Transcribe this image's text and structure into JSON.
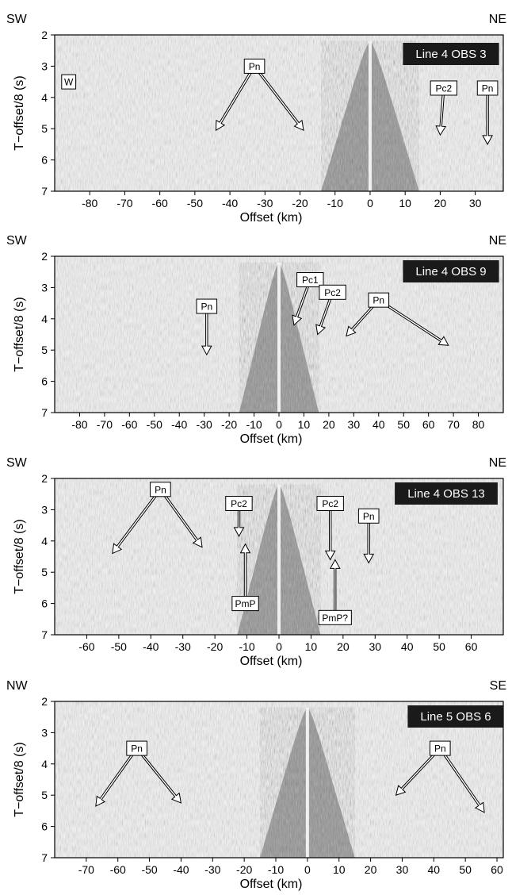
{
  "figure": {
    "xlabel": "Offset (km)",
    "ylabel": "T−offset/8 (s)",
    "colors": {
      "ink": "#000000",
      "panel_bg": "#f4f4f4",
      "label_box": "#1a1a1a",
      "label_text": "#ffffff",
      "annotation_box": "#ffffff"
    }
  },
  "chart_data": [
    {
      "type": "seismic_record_section",
      "title": "Line 4 OBS 3",
      "left_direction": "SW",
      "right_direction": "NE",
      "xlabel": "Offset (km)",
      "ylabel": "T−offset/8 (s)",
      "xlim": [
        -90,
        38
      ],
      "ylim": [
        7,
        2
      ],
      "x_ticks": [
        -80,
        -70,
        -60,
        -50,
        -40,
        -30,
        -20,
        -10,
        0,
        10,
        20,
        30
      ],
      "y_ticks": [
        2,
        3,
        4,
        5,
        6,
        7
      ],
      "source_apex_x": 0,
      "apex_half_width_km": 14,
      "annotations": [
        {
          "label": "W",
          "box": [
            -86,
            3.5
          ],
          "arrows": []
        },
        {
          "label": "Pn",
          "box": [
            -33,
            3.0
          ],
          "arrows": [
            [
              -44,
              5.05
            ],
            [
              -19,
              5.05
            ]
          ]
        },
        {
          "label": "Pc2",
          "box": [
            21,
            3.7
          ],
          "arrows": [
            [
              20,
              5.2
            ]
          ]
        },
        {
          "label": "Pn",
          "box": [
            33.5,
            3.7
          ],
          "arrows": [
            [
              33.5,
              5.5
            ]
          ]
        }
      ]
    },
    {
      "type": "seismic_record_section",
      "title": "Line 4 OBS 9",
      "left_direction": "SW",
      "right_direction": "NE",
      "xlabel": "Offset (km)",
      "ylabel": "T−offset/8 (s)",
      "xlim": [
        -90,
        90
      ],
      "ylim": [
        7,
        2
      ],
      "x_ticks": [
        -80,
        -70,
        -60,
        -50,
        -40,
        -30,
        -20,
        -10,
        0,
        10,
        20,
        30,
        40,
        50,
        60,
        70,
        80
      ],
      "y_ticks": [
        2,
        3,
        4,
        5,
        6,
        7
      ],
      "source_apex_x": 0,
      "apex_half_width_km": 16,
      "annotations": [
        {
          "label": "Pn",
          "box": [
            -29,
            3.6
          ],
          "arrows": [
            [
              -29,
              5.15
            ]
          ]
        },
        {
          "label": "Pc1",
          "box": [
            12.5,
            2.75
          ],
          "arrows": [
            [
              6,
              4.2
            ]
          ]
        },
        {
          "label": "Pc2",
          "box": [
            21.5,
            3.15
          ],
          "arrows": [
            [
              15.5,
              4.5
            ]
          ]
        },
        {
          "label": "Pn",
          "box": [
            40,
            3.4
          ],
          "arrows": [
            [
              27,
              4.55
            ],
            [
              68,
              4.85
            ]
          ]
        }
      ]
    },
    {
      "type": "seismic_record_section",
      "title": "Line 4 OBS 13",
      "left_direction": "SW",
      "right_direction": "NE",
      "xlabel": "Offset (km)",
      "ylabel": "T−offset/8 (s)",
      "xlim": [
        -70,
        70
      ],
      "ylim": [
        7,
        2
      ],
      "x_ticks": [
        -60,
        -50,
        -40,
        -30,
        -20,
        -10,
        0,
        10,
        20,
        30,
        40,
        50,
        60
      ],
      "y_ticks": [
        2,
        3,
        4,
        5,
        6,
        7
      ],
      "source_apex_x": 0,
      "apex_half_width_km": 13,
      "annotations": [
        {
          "label": "Pn",
          "box": [
            -37,
            2.35
          ],
          "arrows": [
            [
              -52,
              4.4
            ],
            [
              -24,
              4.2
            ]
          ]
        },
        {
          "label": "Pc2",
          "box": [
            -12.5,
            2.8
          ],
          "arrows": [
            [
              -12.5,
              3.85
            ]
          ]
        },
        {
          "label": "PmP",
          "box": [
            -10.5,
            6.0
          ],
          "arrows": [
            [
              -10.5,
              4.1
            ]
          ]
        },
        {
          "label": "Pc2",
          "box": [
            16,
            2.8
          ],
          "arrows": [
            [
              16,
              4.6
            ]
          ]
        },
        {
          "label": "Pn",
          "box": [
            28,
            3.2
          ],
          "arrows": [
            [
              28,
              4.7
            ]
          ]
        },
        {
          "label": "PmP?",
          "box": [
            17.5,
            6.45
          ],
          "arrows": [
            [
              17.5,
              4.6
            ]
          ]
        }
      ]
    },
    {
      "type": "seismic_record_section",
      "title": "Line 5 OBS 6",
      "left_direction": "NW",
      "right_direction": "SE",
      "xlabel": "Offset (km)",
      "ylabel": "T−offset/8 (s)",
      "xlim": [
        -80,
        62
      ],
      "ylim": [
        7,
        2
      ],
      "x_ticks": [
        -70,
        -60,
        -50,
        -40,
        -30,
        -20,
        -10,
        0,
        10,
        20,
        30,
        40,
        50,
        60
      ],
      "y_ticks": [
        2,
        3,
        4,
        5,
        6,
        7
      ],
      "source_apex_x": 0,
      "apex_half_width_km": 15,
      "annotations": [
        {
          "label": "Pn",
          "box": [
            -54,
            3.5
          ],
          "arrows": [
            [
              -67,
              5.35
            ],
            [
              -40,
              5.25
            ]
          ]
        },
        {
          "label": "Pn",
          "box": [
            42,
            3.5
          ],
          "arrows": [
            [
              28,
              5.0
            ],
            [
              56,
              5.55
            ]
          ]
        }
      ]
    }
  ]
}
